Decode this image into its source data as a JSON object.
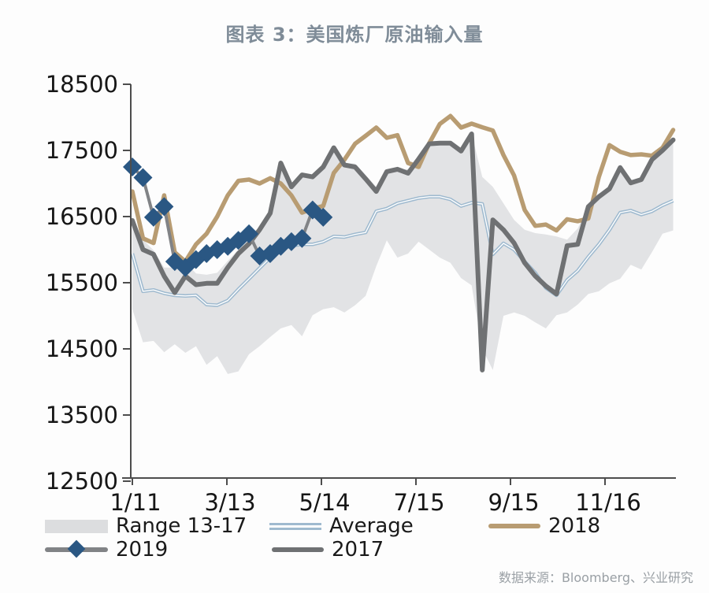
{
  "title": "图表 3：美国炼厂原油输入量",
  "source": "数据来源：Bloomberg、兴业研究",
  "legend": {
    "range": "Range 13-17",
    "average": "Average",
    "y2018": "2018",
    "y2019": "2019",
    "y2017": "2017"
  },
  "colors": {
    "background": "#fdfdfd",
    "title": "#7f8c98",
    "axis": "#4d4d4d",
    "tick_label": "#161616",
    "range_fill": "#e2e3e5",
    "average_line": "#9fbacf",
    "average_core": "#ffffff",
    "line_2018": "#b89c72",
    "line_2017": "#6f7173",
    "line_2019": "#818386",
    "marker_2019": "#2a5783",
    "source_text": "#9aa0a5",
    "legend_text": "#1a1a1a"
  },
  "chart_data": {
    "type": "line",
    "title": "图表 3：美国炼厂原油输入量",
    "ylabel": "",
    "xlabel": "",
    "ylim": [
      12500,
      18500
    ],
    "y_ticks": [
      18500,
      17500,
      16500,
      15500,
      14500,
      13500,
      12500
    ],
    "x_tick_labels": [
      "1/11",
      "3/13",
      "5/14",
      "7/15",
      "9/15",
      "11/16"
    ],
    "weeks": 52,
    "grid": false,
    "legend_position": "bottom",
    "series": [
      {
        "name": "Range 13-17",
        "type": "band",
        "upper": [
          16440,
          16150,
          15990,
          15730,
          15730,
          15820,
          15640,
          15620,
          15650,
          15830,
          16000,
          16160,
          16340,
          16600,
          17310,
          16980,
          17130,
          17130,
          17250,
          17540,
          17310,
          17300,
          17130,
          16950,
          17180,
          17215,
          17215,
          17370,
          17600,
          17610,
          17610,
          17490,
          17750,
          17100,
          16950,
          16700,
          16450,
          16300,
          16250,
          16230,
          16200,
          16150,
          16320,
          16650,
          16800,
          16920,
          17240,
          17010,
          17060,
          17360,
          17500,
          17660
        ],
        "lower": [
          15100,
          14600,
          14620,
          14450,
          14570,
          14440,
          14540,
          14260,
          14390,
          14120,
          14160,
          14420,
          14540,
          14680,
          14810,
          14860,
          14690,
          15010,
          15100,
          15130,
          15050,
          15160,
          15300,
          15750,
          16140,
          15880,
          15940,
          16120,
          16000,
          15880,
          15800,
          15570,
          15460,
          14500,
          14180,
          15000,
          15050,
          15000,
          14900,
          14810,
          15010,
          15050,
          15170,
          15330,
          15370,
          15490,
          15560,
          15770,
          15700,
          15960,
          16240,
          16290
        ]
      },
      {
        "name": "Average",
        "type": "line",
        "values": [
          15940,
          15370,
          15390,
          15340,
          15310,
          15300,
          15310,
          15170,
          15160,
          15230,
          15400,
          15560,
          15720,
          15880,
          16010,
          16060,
          16080,
          16080,
          16120,
          16200,
          16190,
          16230,
          16260,
          16580,
          16620,
          16700,
          16740,
          16780,
          16800,
          16800,
          16760,
          16660,
          16710,
          16690,
          15930,
          16095,
          16000,
          15820,
          15650,
          15420,
          15310,
          15540,
          15680,
          15890,
          16080,
          16300,
          16560,
          16590,
          16530,
          16580,
          16670,
          16740
        ]
      },
      {
        "name": "2018",
        "type": "line",
        "values": [
          16880,
          16170,
          16100,
          16820,
          15960,
          15820,
          16080,
          16240,
          16500,
          16820,
          17040,
          17060,
          17000,
          17080,
          17000,
          16820,
          16560,
          16620,
          16660,
          17160,
          17360,
          17600,
          17720,
          17845,
          17690,
          17730,
          17310,
          17250,
          17610,
          17900,
          18020,
          17845,
          17905,
          17850,
          17800,
          17430,
          17120,
          16600,
          16360,
          16380,
          16290,
          16460,
          16430,
          16470,
          17100,
          17580,
          17480,
          17430,
          17440,
          17420,
          17540,
          17810
        ]
      },
      {
        "name": "2017",
        "type": "line",
        "values": [
          16440,
          16000,
          15930,
          15600,
          15350,
          15600,
          15470,
          15490,
          15490,
          15730,
          15940,
          16090,
          16300,
          16550,
          17310,
          16950,
          17130,
          17100,
          17250,
          17540,
          17280,
          17250,
          17070,
          16880,
          17180,
          17215,
          17155,
          17370,
          17600,
          17610,
          17610,
          17490,
          17750,
          14180,
          16450,
          16300,
          16100,
          15800,
          15600,
          15450,
          15330,
          16060,
          16080,
          16650,
          16800,
          16920,
          17240,
          17010,
          17060,
          17360,
          17500,
          17660
        ]
      },
      {
        "name": "2019",
        "type": "line",
        "marker": "diamond",
        "values": [
          17250,
          17090,
          16490,
          16650,
          15820,
          15730,
          15850,
          15940,
          16000,
          16050,
          16140,
          16240,
          15905,
          15940,
          16050,
          16120,
          16170,
          16600,
          16490
        ]
      }
    ]
  }
}
